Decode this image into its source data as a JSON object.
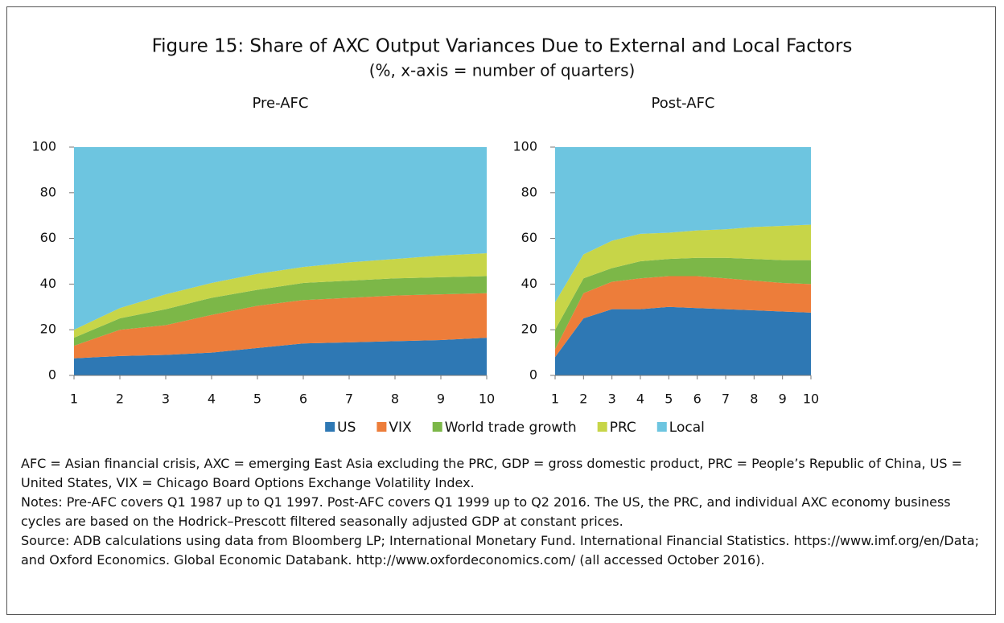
{
  "title": "Figure 15: Share of AXC Output Variances Due to External and Local Factors",
  "subtitle": "(%, x-axis = number of quarters)",
  "chart_data": [
    {
      "type": "stacked_area",
      "title": "Pre-AFC",
      "x": [
        1,
        2,
        3,
        4,
        5,
        6,
        7,
        8,
        9,
        10
      ],
      "xlim": [
        1,
        10
      ],
      "xticks": [
        1,
        2,
        3,
        4,
        5,
        6,
        7,
        8,
        9,
        10
      ],
      "ylim": [
        0,
        100
      ],
      "yticks": [
        0,
        20,
        40,
        60,
        80,
        100
      ],
      "series": [
        {
          "name": "US",
          "color": "#2e78b4",
          "values": [
            7.5,
            8.5,
            9,
            10,
            12,
            14,
            14.5,
            15,
            15.5,
            16.5
          ]
        },
        {
          "name": "VIX",
          "color": "#ed7d3a",
          "values": [
            5.5,
            11.5,
            13,
            16.5,
            18.5,
            19,
            19.5,
            20,
            20,
            19.5
          ]
        },
        {
          "name": "World trade growth",
          "color": "#7cb748",
          "values": [
            3.5,
            5,
            7,
            7.5,
            7,
            7.5,
            7.5,
            7.5,
            7.5,
            7.5
          ]
        },
        {
          "name": "PRC",
          "color": "#c7d548",
          "values": [
            3.5,
            4.5,
            6.5,
            6.5,
            7,
            7,
            8,
            8.5,
            9.5,
            10
          ]
        },
        {
          "name": "Local",
          "color": "#6dc5e0",
          "values": [
            80,
            70.5,
            64.5,
            59.5,
            55.5,
            52.5,
            50.5,
            49,
            47.5,
            46.5
          ]
        }
      ]
    },
    {
      "type": "stacked_area",
      "title": "Post-AFC",
      "x": [
        1,
        2,
        3,
        4,
        5,
        6,
        7,
        8,
        9,
        10
      ],
      "xlim": [
        1,
        10
      ],
      "xticks": [
        1,
        2,
        3,
        4,
        5,
        6,
        7,
        8,
        9,
        10
      ],
      "ylim": [
        0,
        100
      ],
      "yticks": [
        0,
        20,
        40,
        60,
        80,
        100
      ],
      "series": [
        {
          "name": "US",
          "color": "#2e78b4",
          "values": [
            8,
            25,
            29,
            29,
            30,
            29.5,
            29,
            28.5,
            28,
            27.5
          ]
        },
        {
          "name": "VIX",
          "color": "#ed7d3a",
          "values": [
            3.5,
            11,
            12,
            13.5,
            13.5,
            14,
            13.5,
            13,
            12.5,
            12.5
          ]
        },
        {
          "name": "World trade growth",
          "color": "#7cb748",
          "values": [
            8.5,
            6.5,
            6,
            7.5,
            7.5,
            8,
            9,
            9.5,
            10,
            10.5
          ]
        },
        {
          "name": "PRC",
          "color": "#c7d548",
          "values": [
            12,
            10.5,
            12,
            12,
            11.5,
            12,
            12.5,
            14,
            15,
            15.5
          ]
        },
        {
          "name": "Local",
          "color": "#6dc5e0",
          "values": [
            68,
            47,
            41,
            38,
            37.5,
            36.5,
            36,
            35,
            34.5,
            34
          ]
        }
      ]
    }
  ],
  "notes": [
    "AFC = Asian financial crisis, AXC = emerging East Asia excluding the PRC, GDP = gross domestic product, PRC = People’s Republic of China, US = United States, VIX = Chicago Board Options Exchange Volatility Index.",
    "Notes: Pre-AFC covers Q1 1987 up to Q1 1997. Post-AFC covers Q1 1999 up to Q2 2016. The US, the PRC, and individual AXC economy business cycles are based on the Hodrick–Prescott filtered seasonally adjusted GDP at constant prices.",
    "Source: ADB calculations using data from Bloomberg LP; International Monetary Fund. International Financial Statistics. https://www.imf.org/en/Data; and Oxford Economics. Global Economic Databank.  http://www.oxfordeconomics.com/ (all accessed October 2016)."
  ]
}
